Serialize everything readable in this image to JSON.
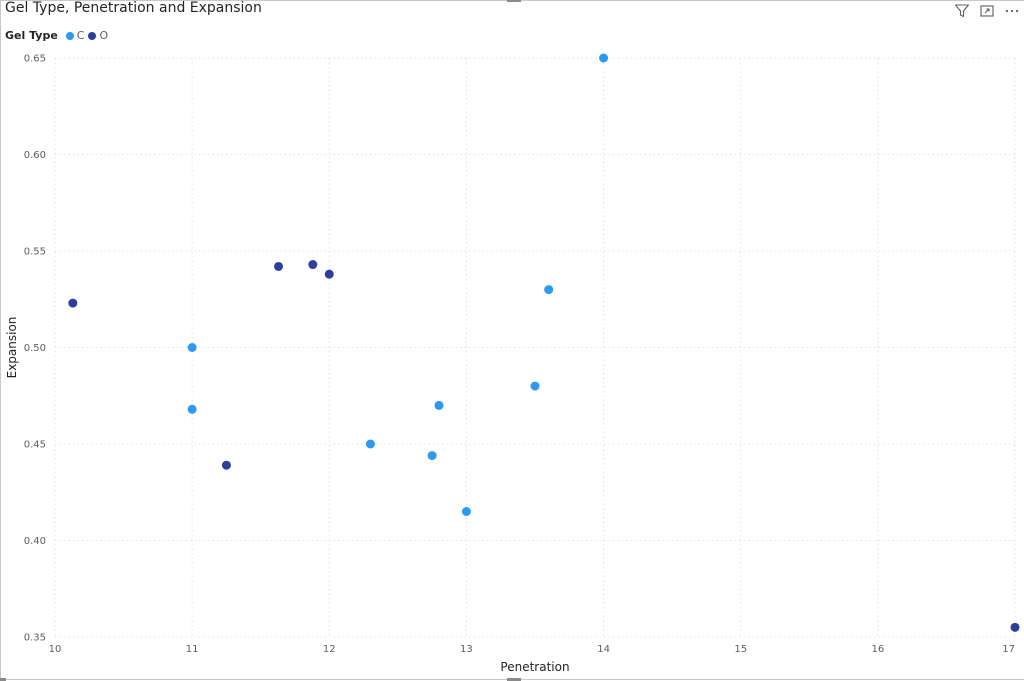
{
  "visual": {
    "title": "Gel Type, Penetration and Expansion"
  },
  "header_icons": [
    "filter-icon",
    "focus-mode-icon",
    "more-options-icon"
  ],
  "chart_data": {
    "type": "scatter",
    "title": "Gel Type, Penetration and Expansion",
    "xlabel": "Penetration",
    "ylabel": "Expansion",
    "xlim": [
      10,
      17
    ],
    "ylim": [
      0.35,
      0.65
    ],
    "x_ticks": [
      "10",
      "11",
      "12",
      "13",
      "14",
      "15",
      "16",
      "17"
    ],
    "y_ticks": [
      "0.35",
      "0.40",
      "0.45",
      "0.50",
      "0.55",
      "0.60",
      "0.65"
    ],
    "grid": true,
    "legend": {
      "title": "Gel Type",
      "position": "top-left",
      "entries": [
        "C",
        "O"
      ]
    },
    "series": [
      {
        "name": "C",
        "color": "#2e99f0",
        "points": [
          {
            "x": 11.0,
            "y": 0.5
          },
          {
            "x": 11.0,
            "y": 0.468
          },
          {
            "x": 12.3,
            "y": 0.45
          },
          {
            "x": 12.75,
            "y": 0.444
          },
          {
            "x": 12.8,
            "y": 0.47
          },
          {
            "x": 13.0,
            "y": 0.415
          },
          {
            "x": 13.5,
            "y": 0.48
          },
          {
            "x": 13.6,
            "y": 0.53
          },
          {
            "x": 14.0,
            "y": 0.65
          }
        ]
      },
      {
        "name": "O",
        "color": "#2d3e9e",
        "points": [
          {
            "x": 10.13,
            "y": 0.523
          },
          {
            "x": 11.25,
            "y": 0.439
          },
          {
            "x": 11.63,
            "y": 0.542
          },
          {
            "x": 11.88,
            "y": 0.543
          },
          {
            "x": 12.0,
            "y": 0.538
          },
          {
            "x": 17.0,
            "y": 0.355
          }
        ]
      }
    ]
  }
}
